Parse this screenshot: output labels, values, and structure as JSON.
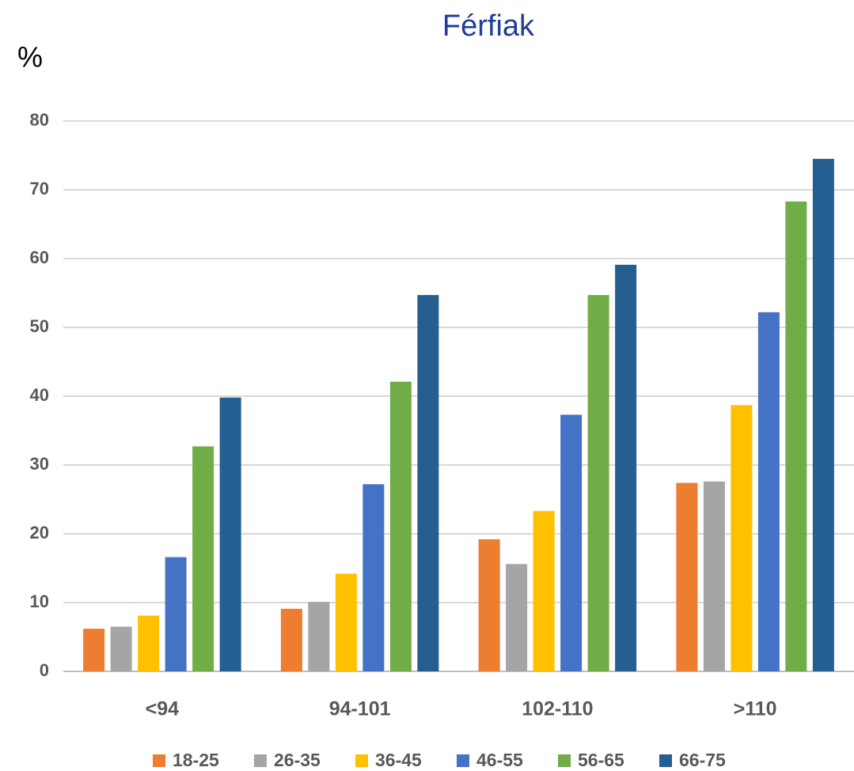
{
  "chart_data": {
    "type": "bar",
    "title": "Férfiak",
    "y_label": "%",
    "categories": [
      "<94",
      "94-101",
      "102-110",
      ">110"
    ],
    "series": [
      {
        "name": "18-25",
        "color": "#ed7d31",
        "values": [
          6.2,
          9.1,
          19.2,
          27.4
        ]
      },
      {
        "name": "26-35",
        "color": "#a5a5a5",
        "values": [
          6.5,
          10.1,
          15.6,
          27.6
        ]
      },
      {
        "name": "36-45",
        "color": "#ffc000",
        "values": [
          8.1,
          14.2,
          23.3,
          38.7
        ]
      },
      {
        "name": "46-55",
        "color": "#4472c4",
        "values": [
          16.6,
          27.2,
          37.3,
          52.2
        ]
      },
      {
        "name": "56-65",
        "color": "#70ad47",
        "values": [
          32.7,
          42.1,
          54.7,
          68.3
        ]
      },
      {
        "name": "66-75",
        "color": "#255e91",
        "values": [
          39.8,
          54.7,
          59.1,
          74.5
        ]
      }
    ],
    "ylim": [
      0,
      80
    ],
    "yticks": [
      0,
      10,
      20,
      30,
      40,
      50,
      60,
      70,
      80
    ],
    "grid": true,
    "legend": "bottom"
  }
}
